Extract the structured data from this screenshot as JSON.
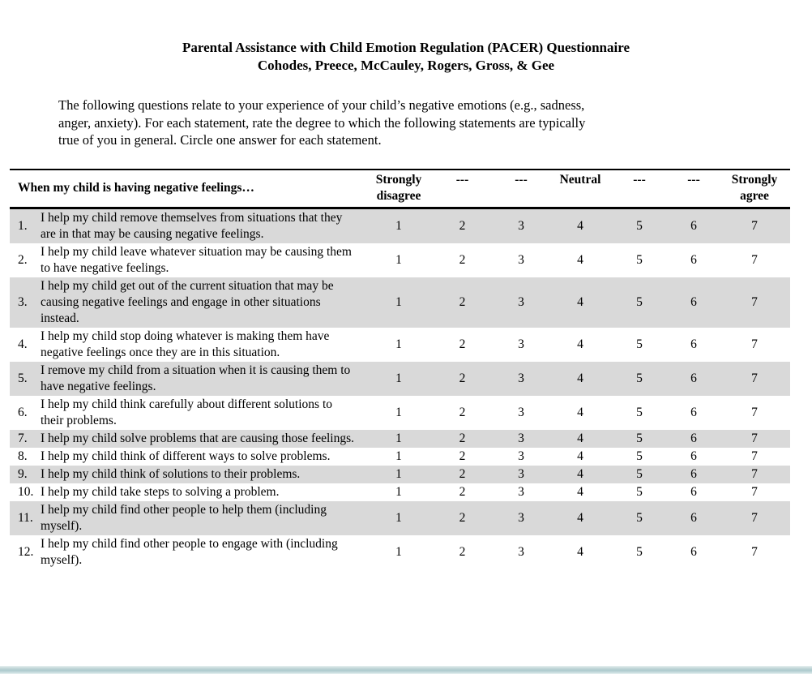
{
  "page": {
    "title_line1": "Parental Assistance with Child Emotion Regulation (PACER) Questionnaire",
    "title_line2": "Cohodes, Preece, McCauley, Rogers, Gross, & Gee",
    "instructions_lines": [
      "The following questions relate to your experience of your child’s negative emotions (e.g., sadness,",
      "anger, anxiety). For each statement, rate the degree to which the following statements are typically",
      "true of you in general. Circle one answer for each statement."
    ]
  },
  "table": {
    "stem_header": "When my child is having negative feelings…",
    "scale_headers": [
      "Strongly disagree",
      "---",
      "---",
      "Neutral",
      "---",
      "---",
      "Strongly agree"
    ],
    "scale_values": [
      "1",
      "2",
      "3",
      "4",
      "5",
      "6",
      "7"
    ],
    "rows": [
      {
        "number": "1.",
        "statement": "I help my child remove themselves from situations that they are in that may be causing negative feelings."
      },
      {
        "number": "2.",
        "statement": "I help my child leave whatever situation may be causing them to have negative feelings."
      },
      {
        "number": "3.",
        "statement": "I help my child get out of the current situation that may be causing negative feelings and engage in other situations instead."
      },
      {
        "number": "4.",
        "statement": "I help my child stop doing whatever is making them have negative feelings once they are in this situation."
      },
      {
        "number": "5.",
        "statement": "I remove my child from a situation when it is causing them to have negative feelings."
      },
      {
        "number": "6.",
        "statement": "I help my child think carefully about different solutions to their problems."
      },
      {
        "number": "7.",
        "statement": "I help my child solve problems that are causing those feelings."
      },
      {
        "number": "8.",
        "statement": "I help my child think of different ways to solve problems."
      },
      {
        "number": "9.",
        "statement": "I help my child think of solutions to their problems."
      },
      {
        "number": "10.",
        "statement": "I help my child take steps to solving a problem."
      },
      {
        "number": "11.",
        "statement": "I help my child find other people to help them (including myself)."
      },
      {
        "number": "12.",
        "statement": "I help my child find other people to engage with (including myself)."
      }
    ]
  },
  "colors": {
    "row_shading": "#d9d9d9",
    "bottom_bar": "#aecacd",
    "text": "#000000",
    "page_background": "#ffffff"
  }
}
